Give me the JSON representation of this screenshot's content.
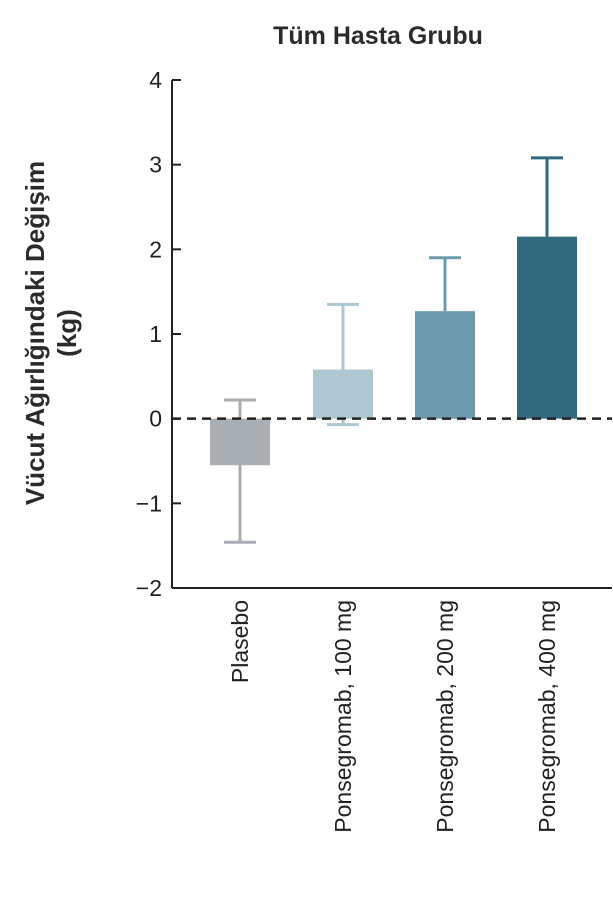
{
  "chart_data": {
    "type": "bar",
    "title": "Tüm Hasta Grubu",
    "ylabel_lines": [
      "Vücut Ağırlığındaki Değişim",
      "(kg)"
    ],
    "xlabel": "",
    "categories": [
      "Plasebo",
      "Ponsegromab, 100 mg",
      "Ponsegromab, 200 mg",
      "Ponsegromab, 400 mg"
    ],
    "values": [
      -0.55,
      0.58,
      1.27,
      2.15
    ],
    "error_upper": [
      0.22,
      1.35,
      1.9,
      3.08
    ],
    "error_lower": [
      -1.46,
      -0.07,
      1.27,
      2.15
    ],
    "bar_colors": [
      "#a9aeb3",
      "#aec7d1",
      "#6e9aad",
      "#31697f"
    ],
    "ylim": [
      -2,
      4
    ],
    "yticks": [
      4,
      3,
      2,
      1,
      0,
      -1,
      -2
    ],
    "ytick_labels": [
      "4",
      "3",
      "2",
      "1",
      "0",
      "−1",
      "−2"
    ],
    "reference_line": 0,
    "grid": false,
    "legend": "none"
  }
}
